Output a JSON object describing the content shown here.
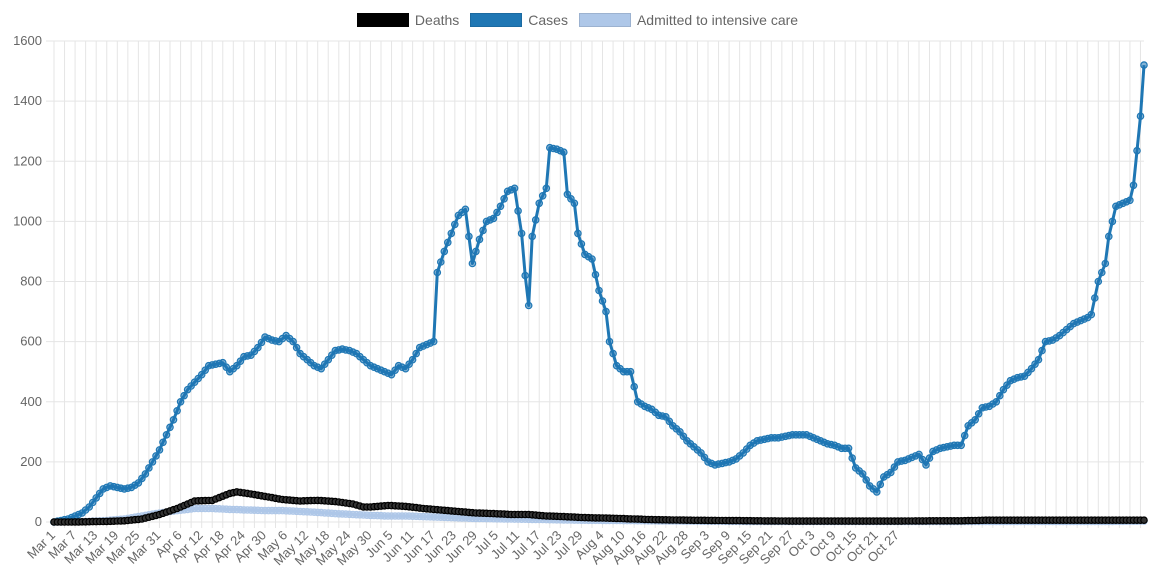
{
  "chart_data": {
    "type": "line",
    "title": "",
    "xlabel": "",
    "ylabel": "",
    "ylim": [
      0,
      1600
    ],
    "y_ticks": [
      0,
      200,
      400,
      600,
      800,
      1000,
      1200,
      1400,
      1600
    ],
    "grid": true,
    "legend_position": "top",
    "x_tick_labels": [
      "Mar 1",
      "Mar 7",
      "Mar 13",
      "Mar 19",
      "Mar 25",
      "Mar 31",
      "Apr 6",
      "Apr 12",
      "Apr 18",
      "Apr 24",
      "Apr 30",
      "May 6",
      "May 12",
      "May 18",
      "May 24",
      "May 30",
      "Jun 5",
      "Jun 11",
      "Jun 17",
      "Jun 23",
      "Jun 29",
      "Jul 5",
      "Jul 11",
      "Jul 17",
      "Jul 23",
      "Jul 29",
      "Aug 4",
      "Aug 10",
      "Aug 16",
      "Aug 22",
      "Aug 28",
      "Sep 3",
      "Sep 9",
      "Sep 15",
      "Sep 21",
      "Sep 27",
      "Oct 3",
      "Oct 9",
      "Oct 15",
      "Oct 21",
      "Oct 27"
    ],
    "series": [
      {
        "name": "Deaths",
        "color": "#000000",
        "anchors": [
          [
            0,
            0
          ],
          [
            5,
            0
          ],
          [
            10,
            1
          ],
          [
            15,
            2
          ],
          [
            20,
            4
          ],
          [
            25,
            10
          ],
          [
            30,
            25
          ],
          [
            35,
            45
          ],
          [
            38,
            60
          ],
          [
            40,
            70
          ],
          [
            45,
            72
          ],
          [
            50,
            95
          ],
          [
            52,
            100
          ],
          [
            55,
            95
          ],
          [
            60,
            85
          ],
          [
            65,
            75
          ],
          [
            70,
            70
          ],
          [
            75,
            72
          ],
          [
            80,
            68
          ],
          [
            85,
            60
          ],
          [
            88,
            50
          ],
          [
            90,
            50
          ],
          [
            95,
            55
          ],
          [
            100,
            52
          ],
          [
            105,
            45
          ],
          [
            110,
            40
          ],
          [
            115,
            35
          ],
          [
            120,
            30
          ],
          [
            125,
            28
          ],
          [
            130,
            25
          ],
          [
            135,
            25
          ],
          [
            140,
            20
          ],
          [
            145,
            18
          ],
          [
            150,
            15
          ],
          [
            160,
            12
          ],
          [
            170,
            8
          ],
          [
            180,
            6
          ],
          [
            190,
            5
          ],
          [
            200,
            4
          ],
          [
            210,
            3
          ],
          [
            220,
            3
          ],
          [
            230,
            3
          ],
          [
            240,
            3
          ],
          [
            250,
            4
          ],
          [
            258,
            4
          ],
          [
            262,
            5
          ],
          [
            265,
            6
          ],
          [
            266,
            6
          ]
        ]
      },
      {
        "name": "Cases",
        "color": "#1f77b4",
        "anchors": [
          [
            0,
            0
          ],
          [
            2,
            5
          ],
          [
            4,
            10
          ],
          [
            6,
            20
          ],
          [
            8,
            30
          ],
          [
            10,
            50
          ],
          [
            12,
            80
          ],
          [
            14,
            110
          ],
          [
            16,
            120
          ],
          [
            18,
            115
          ],
          [
            20,
            110
          ],
          [
            22,
            115
          ],
          [
            24,
            130
          ],
          [
            26,
            160
          ],
          [
            28,
            200
          ],
          [
            30,
            240
          ],
          [
            32,
            290
          ],
          [
            34,
            340
          ],
          [
            36,
            400
          ],
          [
            38,
            440
          ],
          [
            40,
            465
          ],
          [
            42,
            490
          ],
          [
            44,
            520
          ],
          [
            46,
            525
          ],
          [
            48,
            530
          ],
          [
            50,
            500
          ],
          [
            52,
            520
          ],
          [
            54,
            550
          ],
          [
            56,
            555
          ],
          [
            58,
            580
          ],
          [
            60,
            615
          ],
          [
            62,
            605
          ],
          [
            64,
            600
          ],
          [
            66,
            620
          ],
          [
            68,
            600
          ],
          [
            70,
            560
          ],
          [
            72,
            540
          ],
          [
            74,
            520
          ],
          [
            76,
            510
          ],
          [
            78,
            540
          ],
          [
            80,
            570
          ],
          [
            82,
            575
          ],
          [
            84,
            570
          ],
          [
            86,
            560
          ],
          [
            88,
            540
          ],
          [
            90,
            520
          ],
          [
            92,
            510
          ],
          [
            94,
            500
          ],
          [
            96,
            490
          ],
          [
            98,
            520
          ],
          [
            100,
            510
          ],
          [
            102,
            540
          ],
          [
            104,
            580
          ],
          [
            106,
            590
          ],
          [
            108,
            600
          ],
          [
            109,
            830
          ],
          [
            111,
            900
          ],
          [
            113,
            960
          ],
          [
            115,
            1020
          ],
          [
            117,
            1040
          ],
          [
            119,
            860
          ],
          [
            121,
            940
          ],
          [
            123,
            1000
          ],
          [
            125,
            1010
          ],
          [
            127,
            1050
          ],
          [
            129,
            1100
          ],
          [
            131,
            1110
          ],
          [
            133,
            960
          ],
          [
            134,
            820
          ],
          [
            135,
            720
          ],
          [
            136,
            950
          ],
          [
            138,
            1060
          ],
          [
            140,
            1110
          ],
          [
            141,
            1245
          ],
          [
            143,
            1240
          ],
          [
            145,
            1230
          ],
          [
            146,
            1090
          ],
          [
            148,
            1060
          ],
          [
            149,
            960
          ],
          [
            151,
            890
          ],
          [
            153,
            875
          ],
          [
            155,
            770
          ],
          [
            157,
            700
          ],
          [
            158,
            600
          ],
          [
            160,
            520
          ],
          [
            162,
            500
          ],
          [
            164,
            500
          ],
          [
            166,
            400
          ],
          [
            168,
            385
          ],
          [
            170,
            375
          ],
          [
            172,
            355
          ],
          [
            174,
            350
          ],
          [
            176,
            320
          ],
          [
            178,
            300
          ],
          [
            180,
            270
          ],
          [
            182,
            250
          ],
          [
            184,
            230
          ],
          [
            186,
            200
          ],
          [
            188,
            190
          ],
          [
            190,
            195
          ],
          [
            192,
            200
          ],
          [
            194,
            210
          ],
          [
            196,
            230
          ],
          [
            198,
            255
          ],
          [
            200,
            270
          ],
          [
            202,
            275
          ],
          [
            204,
            280
          ],
          [
            206,
            280
          ],
          [
            208,
            285
          ],
          [
            210,
            290
          ],
          [
            212,
            290
          ],
          [
            214,
            290
          ],
          [
            216,
            280
          ],
          [
            218,
            270
          ],
          [
            220,
            260
          ],
          [
            222,
            255
          ],
          [
            224,
            245
          ],
          [
            226,
            245
          ],
          [
            228,
            180
          ],
          [
            230,
            160
          ],
          [
            232,
            120
          ],
          [
            233,
            110
          ],
          [
            234,
            100
          ],
          [
            236,
            150
          ],
          [
            238,
            165
          ],
          [
            240,
            200
          ],
          [
            242,
            205
          ],
          [
            244,
            215
          ],
          [
            246,
            225
          ],
          [
            248,
            190
          ],
          [
            250,
            235
          ],
          [
            252,
            245
          ],
          [
            254,
            250
          ],
          [
            256,
            255
          ],
          [
            258,
            255
          ],
          [
            260,
            320
          ],
          [
            262,
            340
          ],
          [
            264,
            380
          ],
          [
            266,
            385
          ],
          [
            268,
            400
          ],
          [
            270,
            440
          ],
          [
            272,
            470
          ],
          [
            274,
            480
          ],
          [
            276,
            485
          ],
          [
            278,
            510
          ],
          [
            280,
            540
          ],
          [
            282,
            600
          ],
          [
            284,
            605
          ],
          [
            286,
            620
          ],
          [
            288,
            640
          ],
          [
            290,
            660
          ],
          [
            292,
            670
          ],
          [
            294,
            680
          ],
          [
            295,
            690
          ],
          [
            297,
            800
          ],
          [
            299,
            860
          ],
          [
            300,
            950
          ],
          [
            302,
            1050
          ],
          [
            304,
            1060
          ],
          [
            306,
            1070
          ],
          [
            307,
            1120
          ],
          [
            309,
            1350
          ],
          [
            310,
            1520
          ]
        ]
      },
      {
        "name": "Admitted to intensive care",
        "color": "#aec7e8",
        "anchors": [
          [
            0,
            0
          ],
          [
            10,
            2
          ],
          [
            15,
            5
          ],
          [
            20,
            10
          ],
          [
            25,
            20
          ],
          [
            30,
            30
          ],
          [
            35,
            38
          ],
          [
            38,
            42
          ],
          [
            40,
            45
          ],
          [
            45,
            45
          ],
          [
            50,
            42
          ],
          [
            55,
            40
          ],
          [
            60,
            38
          ],
          [
            65,
            38
          ],
          [
            70,
            35
          ],
          [
            75,
            32
          ],
          [
            80,
            28
          ],
          [
            85,
            25
          ],
          [
            90,
            22
          ],
          [
            95,
            20
          ],
          [
            100,
            20
          ],
          [
            105,
            18
          ],
          [
            110,
            16
          ],
          [
            115,
            14
          ],
          [
            120,
            12
          ],
          [
            130,
            10
          ],
          [
            140,
            8
          ],
          [
            150,
            6
          ],
          [
            160,
            5
          ],
          [
            170,
            4
          ],
          [
            180,
            3
          ],
          [
            200,
            2
          ],
          [
            220,
            2
          ],
          [
            240,
            2
          ],
          [
            260,
            2
          ],
          [
            280,
            2
          ],
          [
            300,
            2
          ],
          [
            310,
            3
          ]
        ]
      }
    ]
  }
}
